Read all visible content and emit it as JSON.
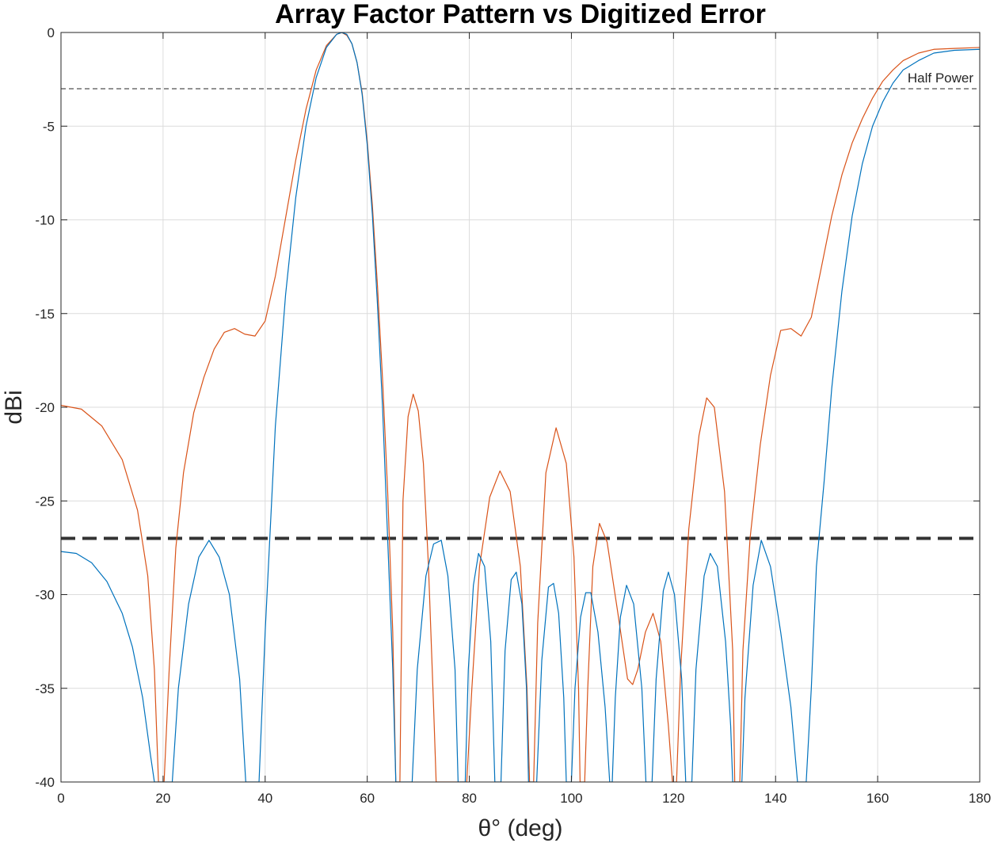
{
  "chart_data": {
    "type": "line",
    "title": "Array Factor Pattern vs Digitized Error",
    "xlabel": "θ° (deg)",
    "ylabel": "dBi",
    "xlim": [
      0,
      180
    ],
    "ylim": [
      -40,
      0
    ],
    "xticks": [
      0,
      20,
      40,
      60,
      80,
      100,
      120,
      140,
      160,
      180
    ],
    "yticks": [
      0,
      -5,
      -10,
      -15,
      -20,
      -25,
      -30,
      -35,
      -40
    ],
    "grid": true,
    "series": [
      {
        "color": "#D95319",
        "points": [
          [
            0,
            -19.9
          ],
          [
            4,
            -20.1
          ],
          [
            8,
            -21.0
          ],
          [
            12,
            -22.8
          ],
          [
            15,
            -25.5
          ],
          [
            17,
            -29.0
          ],
          [
            18.3,
            -34.0
          ],
          [
            19.1,
            -40
          ],
          [
            20.2,
            -40
          ],
          [
            21.2,
            -34.0
          ],
          [
            22.5,
            -27.5
          ],
          [
            24,
            -23.5
          ],
          [
            26,
            -20.3
          ],
          [
            28,
            -18.4
          ],
          [
            30,
            -16.9
          ],
          [
            32,
            -16.0
          ],
          [
            34,
            -15.8
          ],
          [
            36,
            -16.1
          ],
          [
            38,
            -16.2
          ],
          [
            40,
            -15.4
          ],
          [
            42,
            -13.0
          ],
          [
            44,
            -9.9
          ],
          [
            46,
            -6.8
          ],
          [
            48,
            -4.1
          ],
          [
            50,
            -2.0
          ],
          [
            52,
            -0.7
          ],
          [
            54,
            -0.1
          ],
          [
            55,
            0
          ],
          [
            56,
            -0.15
          ],
          [
            57,
            -0.6
          ],
          [
            58,
            -1.6
          ],
          [
            59,
            -3.2
          ],
          [
            60,
            -5.8
          ],
          [
            61,
            -9.2
          ],
          [
            62,
            -13.5
          ],
          [
            63,
            -18.5
          ],
          [
            64,
            -24.5
          ],
          [
            65,
            -32.0
          ],
          [
            65.6,
            -40
          ],
          [
            66.4,
            -40
          ],
          [
            67,
            -25.0
          ],
          [
            68,
            -20.5
          ],
          [
            69,
            -19.3
          ],
          [
            70,
            -20.2
          ],
          [
            71,
            -23.0
          ],
          [
            72,
            -28.5
          ],
          [
            73,
            -36.0
          ],
          [
            73.5,
            -40
          ],
          [
            79.5,
            -40
          ],
          [
            80.5,
            -35.0
          ],
          [
            82,
            -28.5
          ],
          [
            84,
            -24.8
          ],
          [
            86,
            -23.4
          ],
          [
            88,
            -24.5
          ],
          [
            90,
            -28.5
          ],
          [
            91.3,
            -35.0
          ],
          [
            91.8,
            -40
          ],
          [
            92.6,
            -40
          ],
          [
            93.4,
            -31.5
          ],
          [
            95,
            -23.5
          ],
          [
            97,
            -21.1
          ],
          [
            99,
            -23.0
          ],
          [
            100.5,
            -28.0
          ],
          [
            101.4,
            -35.0
          ],
          [
            101.7,
            -40
          ],
          [
            102.6,
            -40
          ],
          [
            103.2,
            -35.0
          ],
          [
            104.2,
            -28.5
          ],
          [
            105.5,
            -26.2
          ],
          [
            107,
            -27.2
          ],
          [
            109,
            -30.8
          ],
          [
            111,
            -34.5
          ],
          [
            112,
            -34.8
          ],
          [
            113,
            -34.0
          ],
          [
            114.5,
            -32.0
          ],
          [
            116,
            -31.0
          ],
          [
            117.5,
            -32.5
          ],
          [
            119,
            -37.0
          ],
          [
            119.8,
            -40
          ],
          [
            120.6,
            -40
          ],
          [
            121.4,
            -34.0
          ],
          [
            123,
            -26.5
          ],
          [
            125,
            -21.5
          ],
          [
            126.5,
            -19.5
          ],
          [
            128,
            -20.0
          ],
          [
            130,
            -24.5
          ],
          [
            131.6,
            -33.0
          ],
          [
            132,
            -40
          ],
          [
            133,
            -40
          ],
          [
            133.6,
            -33.0
          ],
          [
            135,
            -27.0
          ],
          [
            137,
            -22.0
          ],
          [
            139,
            -18.3
          ],
          [
            141,
            -15.9
          ],
          [
            143,
            -15.8
          ],
          [
            145,
            -16.2
          ],
          [
            147,
            -15.2
          ],
          [
            149,
            -12.5
          ],
          [
            151,
            -9.8
          ],
          [
            153,
            -7.6
          ],
          [
            155,
            -5.9
          ],
          [
            157,
            -4.6
          ],
          [
            159,
            -3.5
          ],
          [
            161,
            -2.6
          ],
          [
            163,
            -2.0
          ],
          [
            165,
            -1.5
          ],
          [
            168,
            -1.1
          ],
          [
            171,
            -0.9
          ],
          [
            175,
            -0.85
          ],
          [
            180,
            -0.8
          ]
        ]
      },
      {
        "color": "#0072BD",
        "points": [
          [
            0,
            -27.7
          ],
          [
            3,
            -27.8
          ],
          [
            6,
            -28.3
          ],
          [
            9,
            -29.3
          ],
          [
            12,
            -31.0
          ],
          [
            14,
            -32.8
          ],
          [
            16,
            -35.5
          ],
          [
            17.5,
            -38.5
          ],
          [
            18.3,
            -40
          ],
          [
            21.8,
            -40
          ],
          [
            23,
            -35.0
          ],
          [
            25,
            -30.5
          ],
          [
            27,
            -28.0
          ],
          [
            29,
            -27.1
          ],
          [
            31,
            -28.0
          ],
          [
            33,
            -30.0
          ],
          [
            35,
            -34.5
          ],
          [
            36.2,
            -40
          ],
          [
            38.8,
            -40
          ],
          [
            40,
            -32.0
          ],
          [
            42,
            -21.0
          ],
          [
            44,
            -14.0
          ],
          [
            46,
            -8.8
          ],
          [
            48,
            -5.0
          ],
          [
            50,
            -2.4
          ],
          [
            52,
            -0.8
          ],
          [
            54,
            -0.1
          ],
          [
            55,
            0
          ],
          [
            56,
            -0.1
          ],
          [
            57,
            -0.6
          ],
          [
            58,
            -1.6
          ],
          [
            59,
            -3.3
          ],
          [
            60,
            -6.0
          ],
          [
            61,
            -9.7
          ],
          [
            62,
            -14.5
          ],
          [
            63,
            -20.0
          ],
          [
            64,
            -27.0
          ],
          [
            65,
            -34.0
          ],
          [
            65.6,
            -40
          ],
          [
            68.8,
            -40
          ],
          [
            69.8,
            -34.0
          ],
          [
            71.5,
            -29.0
          ],
          [
            73,
            -27.3
          ],
          [
            74.5,
            -27.1
          ],
          [
            75.8,
            -29.0
          ],
          [
            77.2,
            -34.0
          ],
          [
            77.8,
            -40
          ],
          [
            79.2,
            -40
          ],
          [
            79.8,
            -34.0
          ],
          [
            80.8,
            -29.5
          ],
          [
            81.8,
            -27.8
          ],
          [
            83,
            -28.5
          ],
          [
            84.2,
            -32.5
          ],
          [
            85,
            -40
          ],
          [
            86.2,
            -40
          ],
          [
            87.0,
            -33.0
          ],
          [
            88.2,
            -29.2
          ],
          [
            89.2,
            -28.8
          ],
          [
            90.3,
            -30.5
          ],
          [
            91.2,
            -35.0
          ],
          [
            91.6,
            -40
          ],
          [
            93.2,
            -40
          ],
          [
            94.2,
            -33.5
          ],
          [
            95.5,
            -29.6
          ],
          [
            96.5,
            -29.4
          ],
          [
            97.5,
            -31.0
          ],
          [
            98.5,
            -35.5
          ],
          [
            99.0,
            -40
          ],
          [
            100.0,
            -40
          ],
          [
            100.7,
            -35.0
          ],
          [
            101.8,
            -31.2
          ],
          [
            102.8,
            -29.9
          ],
          [
            103.8,
            -29.9
          ],
          [
            105.2,
            -32.0
          ],
          [
            106.6,
            -36.0
          ],
          [
            107.5,
            -40
          ],
          [
            108,
            -40
          ],
          [
            108.6,
            -35.5
          ],
          [
            109.6,
            -31.2
          ],
          [
            110.8,
            -29.5
          ],
          [
            112.2,
            -30.5
          ],
          [
            113.8,
            -35.0
          ],
          [
            114.6,
            -40
          ],
          [
            115.8,
            -40
          ],
          [
            116.6,
            -34.5
          ],
          [
            118,
            -29.8
          ],
          [
            119,
            -28.8
          ],
          [
            120.2,
            -30.0
          ],
          [
            121.6,
            -34.5
          ],
          [
            122.4,
            -40
          ],
          [
            123.6,
            -40
          ],
          [
            124.4,
            -34.0
          ],
          [
            126,
            -29.0
          ],
          [
            127.2,
            -27.8
          ],
          [
            128.6,
            -28.5
          ],
          [
            130.2,
            -32.5
          ],
          [
            131.2,
            -37.0
          ],
          [
            131.6,
            -40
          ],
          [
            133.4,
            -40
          ],
          [
            134,
            -35.5
          ],
          [
            135.6,
            -29.5
          ],
          [
            137.2,
            -27.1
          ],
          [
            139,
            -28.5
          ],
          [
            141,
            -32.0
          ],
          [
            143,
            -36.0
          ],
          [
            144.3,
            -40
          ],
          [
            146,
            -40
          ],
          [
            147,
            -35.0
          ],
          [
            148,
            -28.5
          ],
          [
            149.5,
            -24.0
          ],
          [
            151,
            -19.0
          ],
          [
            153,
            -13.8
          ],
          [
            155,
            -9.8
          ],
          [
            157,
            -7.0
          ],
          [
            159,
            -5.0
          ],
          [
            161,
            -3.7
          ],
          [
            163,
            -2.7
          ],
          [
            165,
            -2.0
          ],
          [
            168,
            -1.5
          ],
          [
            171,
            -1.1
          ],
          [
            175,
            -0.95
          ],
          [
            180,
            -0.9
          ]
        ]
      }
    ],
    "reference_lines": [
      {
        "y": -3,
        "label": "Half Power",
        "style": "dashed-thin",
        "color": "#262626"
      },
      {
        "y": -27,
        "label": "",
        "style": "dashed-thick",
        "color": "#333333"
      }
    ]
  }
}
